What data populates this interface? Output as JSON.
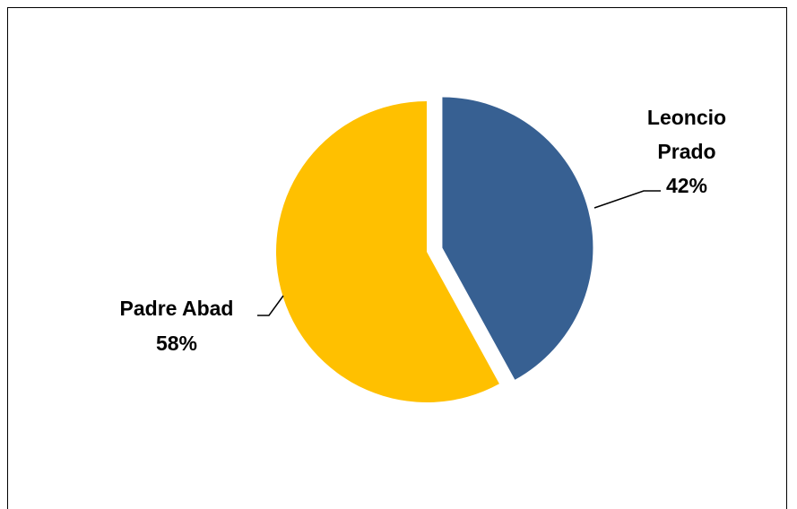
{
  "chart_data": {
    "type": "pie",
    "title": "",
    "slices": [
      {
        "name": "Leoncio",
        "name_line2": "Prado",
        "value": 42,
        "pct_label": "42%",
        "color": "#376092",
        "exploded": true
      },
      {
        "name": "Padre Abad",
        "name_line2": "",
        "value": 58,
        "pct_label": "58%",
        "color": "#FFC000",
        "exploded": false
      }
    ],
    "legend": "none"
  }
}
